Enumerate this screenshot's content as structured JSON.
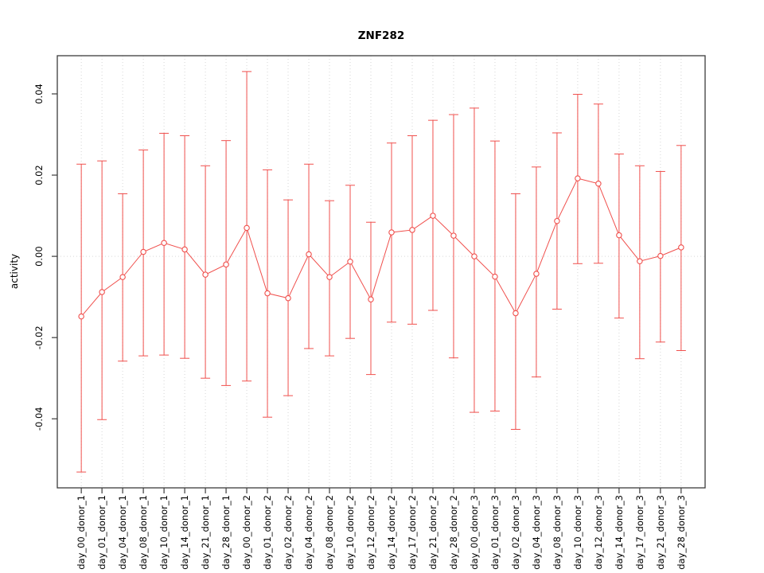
{
  "chart_data": {
    "type": "line",
    "title": "ZNF282",
    "xlabel": "",
    "ylabel": "activity",
    "legend": null,
    "grid": {
      "vertical": "dotted-per-category",
      "horizontal_zero_line": true,
      "style": "dotted"
    },
    "categories": [
      "day_00_donor_1",
      "day_01_donor_1",
      "day_04_donor_1",
      "day_08_donor_1",
      "day_10_donor_1",
      "day_14_donor_1",
      "day_21_donor_1",
      "day_28_donor_1",
      "day_00_donor_2",
      "day_01_donor_2",
      "day_02_donor_2",
      "day_04_donor_2",
      "day_08_donor_2",
      "day_10_donor_2",
      "day_12_donor_2",
      "day_14_donor_2",
      "day_17_donor_2",
      "day_21_donor_2",
      "day_28_donor_2",
      "day_00_donor_3",
      "day_01_donor_3",
      "day_02_donor_3",
      "day_04_donor_3",
      "day_08_donor_3",
      "day_10_donor_3",
      "day_12_donor_3",
      "day_14_donor_3",
      "day_17_donor_3",
      "day_21_donor_3",
      "day_28_donor_3"
    ],
    "series": [
      {
        "name": "activity",
        "marker": "open-circle",
        "values": [
          -0.0148,
          -0.0088,
          -0.0051,
          0.0011,
          0.0033,
          0.0017,
          -0.0045,
          -0.002,
          0.007,
          -0.0091,
          -0.0103,
          0.0005,
          -0.0051,
          -0.0013,
          -0.0106,
          0.0059,
          0.0065,
          0.01,
          0.0051,
          0.0,
          -0.005,
          -0.014,
          -0.0043,
          0.0087,
          0.0192,
          0.0179,
          0.0052,
          -0.0012,
          0.0001,
          0.0022
        ],
        "error_high": [
          0.0227,
          0.0235,
          0.0154,
          0.0262,
          0.0303,
          0.0297,
          0.0223,
          0.0285,
          0.0455,
          0.0213,
          0.0139,
          0.0227,
          0.0137,
          0.0175,
          0.0084,
          0.0279,
          0.0297,
          0.0335,
          0.0349,
          0.0365,
          0.0284,
          0.0154,
          0.022,
          0.0304,
          0.0399,
          0.0375,
          0.0252,
          0.0223,
          0.0209,
          0.0273
        ],
        "error_low": [
          -0.0531,
          -0.0402,
          -0.0258,
          -0.0245,
          -0.0243,
          -0.0251,
          -0.03,
          -0.0318,
          -0.0307,
          -0.0396,
          -0.0343,
          -0.0227,
          -0.0245,
          -0.0202,
          -0.0291,
          -0.0162,
          -0.0167,
          -0.0133,
          -0.025,
          -0.0384,
          -0.0381,
          -0.0426,
          -0.0297,
          -0.013,
          -0.0018,
          -0.0017,
          -0.0152,
          -0.0252,
          -0.0211,
          -0.0232
        ]
      }
    ],
    "yticks": [
      -0.04,
      -0.02,
      0,
      0.02,
      0.04
    ],
    "ytick_labels": [
      "-0.04",
      "-0.02",
      "0.00",
      "0.02",
      "0.04"
    ],
    "ylim": [
      -0.057,
      0.0494
    ],
    "colors": {
      "series_line": "#f0504d",
      "marker_fill": "#ffffff",
      "grid_line": "#d6d6d6",
      "axis_box": "#3c3c3c",
      "text": "#000000",
      "background": "#ffffff"
    }
  }
}
